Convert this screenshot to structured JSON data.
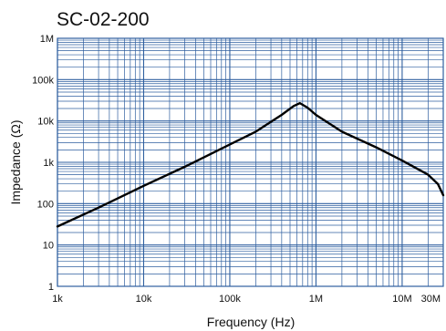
{
  "chart_data": {
    "type": "line",
    "title": "SC-02-200",
    "xlabel": "Frequency (Hz)",
    "ylabel": "Impedance (Ω)",
    "x_scale": "log",
    "y_scale": "log",
    "xlim": [
      1000,
      30000000
    ],
    "ylim": [
      1,
      1000000
    ],
    "x_ticks": [
      {
        "value": 1000,
        "label": "1k"
      },
      {
        "value": 10000,
        "label": "10k"
      },
      {
        "value": 100000,
        "label": "100k"
      },
      {
        "value": 1000000,
        "label": "1M"
      },
      {
        "value": 10000000,
        "label": "10M"
      },
      {
        "value": 30000000,
        "label": "30M"
      }
    ],
    "y_ticks": [
      {
        "value": 1,
        "label": "1"
      },
      {
        "value": 10,
        "label": "10"
      },
      {
        "value": 100,
        "label": "100"
      },
      {
        "value": 1000,
        "label": "1k"
      },
      {
        "value": 10000,
        "label": "10k"
      },
      {
        "value": 100000,
        "label": "100k"
      },
      {
        "value": 1000000,
        "label": "1M"
      }
    ],
    "grid": true,
    "grid_color": "#2f5f9f",
    "line_color": "#000000",
    "series": [
      {
        "x": [
          1000,
          3000,
          10000,
          30000,
          100000,
          200000,
          400000,
          550000,
          650000,
          800000,
          1000000,
          2000000,
          5000000,
          10000000,
          20000000,
          26000000,
          30000000
        ],
        "y": [
          28,
          80,
          270,
          780,
          2700,
          5500,
          14000,
          23000,
          27000,
          21000,
          14000,
          5500,
          2300,
          1100,
          500,
          300,
          160
        ]
      }
    ]
  }
}
